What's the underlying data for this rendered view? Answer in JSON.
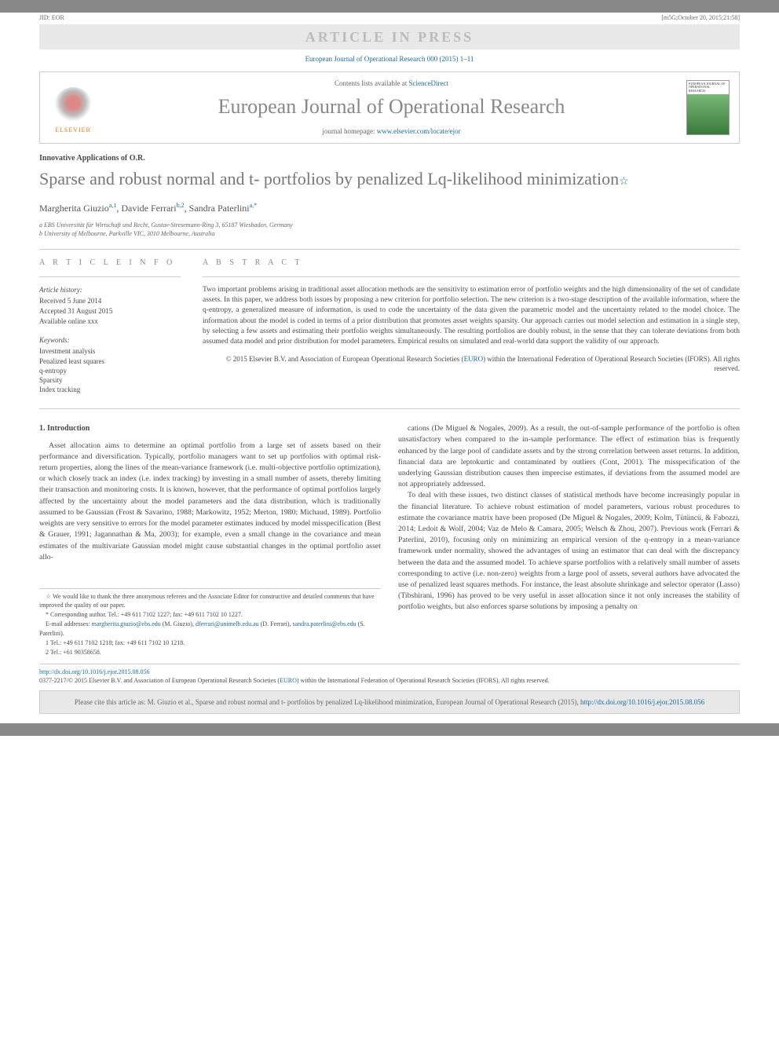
{
  "topbar": {
    "bg": "#888888"
  },
  "jid": {
    "left": "JID: EOR",
    "right": "[m5G;October 20, 2015;21:58]"
  },
  "press_banner": "ARTICLE IN PRESS",
  "journal_ref": "European Journal of Operational Research 000 (2015) 1–11",
  "header": {
    "contents_prefix": "Contents lists available at ",
    "contents_link": "ScienceDirect",
    "journal_title": "European Journal of Operational Research",
    "homepage_prefix": "journal homepage: ",
    "homepage_link": "www.elsevier.com/locate/ejor",
    "elsevier_label": "ELSEVIER"
  },
  "section_label": "Innovative Applications of O.R.",
  "title": "Sparse and robust normal and t- portfolios by penalized Lq-likelihood minimization",
  "title_star": "☆",
  "authors": [
    {
      "name": "Margherita Giuzio",
      "marks": "a,1"
    },
    {
      "name": "Davide Ferrari",
      "marks": "b,2"
    },
    {
      "name": "Sandra Paterlini",
      "marks": "a,*"
    }
  ],
  "affiliations": [
    "a EBS Universität für Wirtschaft und Recht, Gustav-Stresemann-Ring 3, 65187 Wiesbaden, Germany",
    "b University of Melbourne, Parkville VIC, 3010 Melbourne, Australia"
  ],
  "info": {
    "heading": "A R T I C L E   I N F O",
    "history_label": "Article history:",
    "received": "Received 5 June 2014",
    "accepted": "Accepted 31 August 2015",
    "online": "Available online xxx",
    "keywords_label": "Keywords:",
    "keywords": [
      "Investment analysis",
      "Penalized least squares",
      "q-entropy",
      "Sparsity",
      "Index tracking"
    ]
  },
  "abstract": {
    "heading": "A B S T R A C T",
    "text": "Two important problems arising in traditional asset allocation methods are the sensitivity to estimation error of portfolio weights and the high dimensionality of the set of candidate assets. In this paper, we address both issues by proposing a new criterion for portfolio selection. The new criterion is a two-stage description of the available information, where the q-entropy, a generalized measure of information, is used to code the uncertainty of the data given the parametric model and the uncertainty related to the model choice. The information about the model is coded in terms of a prior distribution that promotes asset weights sparsity. Our approach carries out model selection and estimation in a single step, by selecting a few assets and estimating their portfolio weights simultaneously. The resulting portfolios are doubly robust, in the sense that they can tolerate deviations from both assumed data model and prior distribution for model parameters. Empirical results on simulated and real-world data support the validity of our approach.",
    "copyright1": "© 2015 Elsevier B.V. and Association of European Operational Research Societies (",
    "copyright_link": "EURO",
    "copyright2": ") within the International Federation of Operational Research Societies (IFORS). All rights reserved."
  },
  "body": {
    "intro_heading": "1. Introduction",
    "col1_p1": "Asset allocation aims to determine an optimal portfolio from a large set of assets based on their performance and diversification. Typically, portfolio managers want to set up portfolios with optimal risk-return properties, along the lines of the mean-variance framework (i.e. multi-objective portfolio optimization), or which closely track an index (i.e. index tracking) by investing in a small number of assets, thereby limiting their transaction and monitoring costs. It is known, however, that the performance of optimal portfolios largely affected by the uncertainty about the model parameters and the data distribution, which is traditionally assumed to be Gaussian (Frost & Savarino, 1988; Markowitz, 1952; Merton, 1980; Michaud, 1989). Portfolio weights are very sensitive to errors for the model parameter estimates induced by model misspecification (Best & Grauer, 1991; Jagannathan & Ma, 2003); for example, even a small change in the covariance and mean estimates of the multivariate Gaussian model might cause substantial changes in the optimal portfolio asset allo-",
    "col2_p1": "cations (De Miguel & Nogales, 2009). As a result, the out-of-sample performance of the portfolio is often unsatisfactory when compared to the in-sample performance. The effect of estimation bias is frequently enhanced by the large pool of candidate assets and by the strong correlation between asset returns. In addition, financial data are leptokurtic and contaminated by outliers (Cont, 2001). The misspecification of the underlying Gaussian distribution causes then imprecise estimates, if deviations from the assumed model are not appropriately addressed.",
    "col2_p2": "To deal with these issues, two distinct classes of statistical methods have become increasingly popular in the financial literature. To achieve robust estimation of model parameters, various robust procedures to estimate the covariance matrix have been proposed (De Miguel & Nogales, 2009; Kolm, Tütüncü, & Fabozzi, 2014; Ledoit & Wolf, 2004; Vaz de Melo & Camara, 2005; Welsch & Zhou, 2007). Previous work (Ferrari & Paterlini, 2010), focusing only on minimizing an empirical version of the q-entropy in a mean-variance framework under normality, showed the advantages of using an estimator that can deal with the discrepancy between the data and the assumed model. To achieve sparse portfolios with a relatively small number of assets corresponding to active (i.e. non-zero) weights from a large pool of assets, several authors have advocated the use of penalized least squares methods. For instance, the least absolute shrinkage and selector operator (Lasso) (Tibshirani, 1996) has proved to be very useful in asset allocation since it not only increases the stability of portfolio weights, but also enforces sparse solutions by imposing a penalty on"
  },
  "footnotes": {
    "star": "☆ We would like to thank the three anonymous referees and the Associate Editor for constructive and detailed comments that have improved the quality of our paper.",
    "corresp": "* Corresponding author. Tel.: +49 611 7102 1227; fax: +49 611 7102 10 1227.",
    "email_label": "E-mail addresses: ",
    "email1": "margherita.giuzio@ebs.edu",
    "email1_paren": " (M. Giuzio), ",
    "email2": "dferrari@unimelb.edu.au",
    "email2_paren": " (D. Ferrari), ",
    "email3": "sandra.paterlini@ebs.edu",
    "email3_paren": " (S. Paterlini).",
    "tel1": "1 Tel.: +49 611 7102 1218; fax: +49 611 7102 10 1218.",
    "tel2": "2 Tel.: +61 90358658."
  },
  "doi": {
    "link": "http://dx.doi.org/10.1016/j.ejor.2015.08.056",
    "issn": "0377-2217/© 2015 Elsevier B.V. and Association of European Operational Research Societies (",
    "euro": "EURO",
    "issn_end": ") within the International Federation of Operational Research Societies (IFORS). All rights reserved."
  },
  "citebox": {
    "text1": "Please cite this article as: M. Giuzio et al., Sparse and robust normal and t- portfolios by penalized Lq-likelihood minimization, European Journal of Operational Research (2015), ",
    "link": "http://dx.doi.org/10.1016/j.ejor.2015.08.056"
  },
  "colors": {
    "link": "#1a6b9e",
    "grey_text": "#888888",
    "body_text": "#4a4a4a",
    "box_bg": "#e8e8e8",
    "border": "#cccccc",
    "elsevier_orange": "#e67817"
  }
}
